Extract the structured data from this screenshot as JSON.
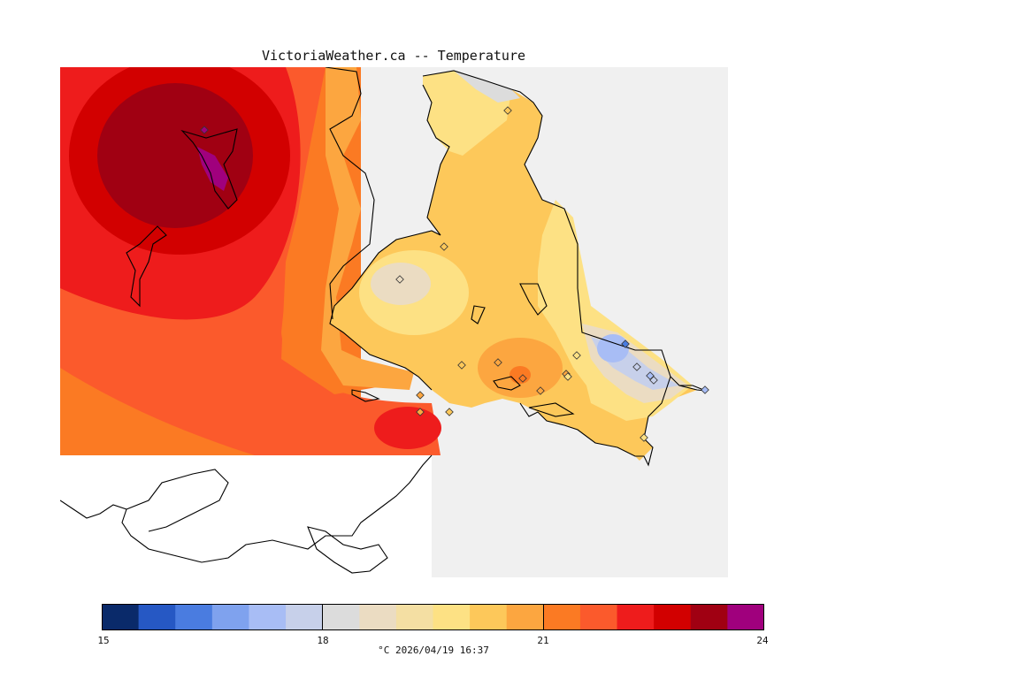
{
  "title": "VictoriaWeather.ca -- Temperature",
  "legend": {
    "colors": [
      "#0a2a6a",
      "#2658c4",
      "#4a7ce0",
      "#7fa2ee",
      "#a8bdf5",
      "#c7d0ea",
      "#dcdcdc",
      "#ebdcc2",
      "#f4dfa3",
      "#fde184",
      "#fdc85a",
      "#fca640",
      "#fb7a23",
      "#fb5a2c",
      "#ee1c1c",
      "#d20000",
      "#a00012",
      "#a0007d"
    ],
    "ticks": [
      "15",
      "18",
      "21",
      "24"
    ],
    "caption": "°C  2026/04/19 16:37"
  },
  "map": {
    "background": "#f0f0f0",
    "station_count": 20
  }
}
